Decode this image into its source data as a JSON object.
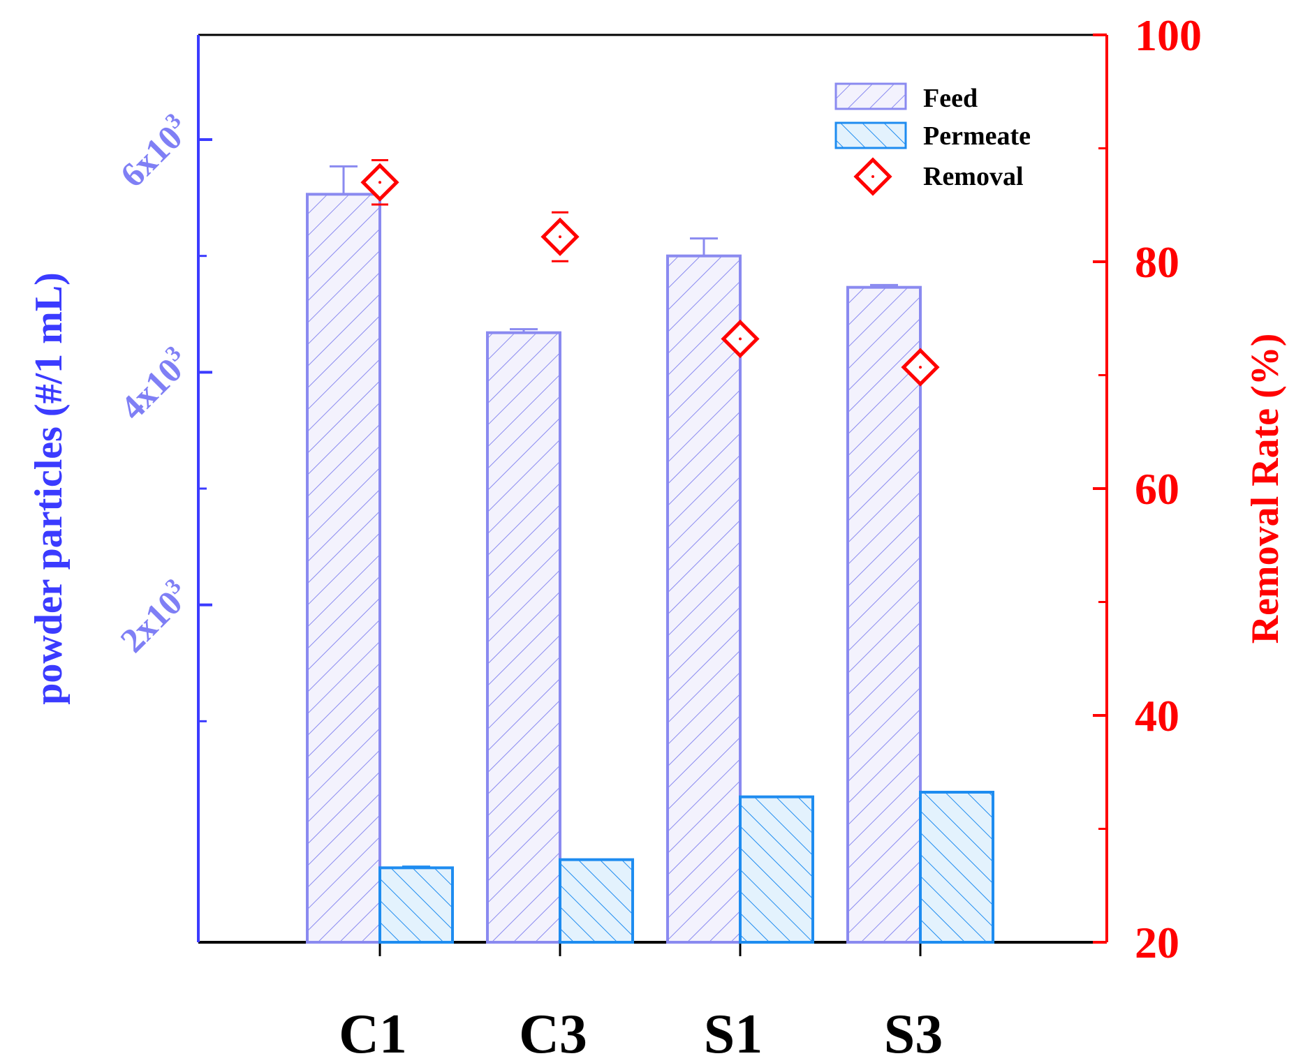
{
  "chart_data": {
    "type": "bar",
    "categories": [
      "C1",
      "C3",
      "S1",
      "S3"
    ],
    "left_axis": {
      "label": "powder particles (#/1 mL)",
      "ticks": [
        {
          "value": 2000,
          "base": "2x10",
          "exp": "3"
        },
        {
          "value": 4000,
          "base": "4x10",
          "exp": "3"
        },
        {
          "value": 6000,
          "base": "6x10",
          "exp": "3"
        }
      ],
      "minor_ticks": [
        1000,
        3000,
        5000
      ],
      "range": [
        -900,
        6900
      ],
      "color": "#3b3bff"
    },
    "right_axis": {
      "label": "Removal Rate (%)",
      "ticks": [
        "20",
        "40",
        "60",
        "80",
        "100"
      ],
      "tick_values": [
        20,
        40,
        60,
        80,
        100
      ],
      "minor_ticks": [
        30,
        50,
        70,
        90
      ],
      "range": [
        20,
        100
      ],
      "color": "#ff0000"
    },
    "series": [
      {
        "name": "Feed",
        "axis": "left",
        "values": [
          5530,
          4340,
          5000,
          4730
        ],
        "errors": [
          240,
          30,
          150,
          20
        ],
        "color": "#8a8af0"
      },
      {
        "name": "Permeate",
        "axis": "left",
        "values": [
          -260,
          -190,
          350,
          390
        ],
        "errors": [
          10,
          0,
          0,
          0
        ],
        "color": "#1e8cf0"
      },
      {
        "name": "Removal",
        "axis": "right",
        "type": "scatter",
        "values": [
          87,
          82.2,
          73.2,
          70.7
        ],
        "errors": [
          0.6,
          0.8,
          0,
          0
        ],
        "color": "#ff0000"
      }
    ],
    "legend": {
      "position": "top-right",
      "labels": [
        "Feed",
        "Permeate",
        "Removal"
      ]
    }
  }
}
